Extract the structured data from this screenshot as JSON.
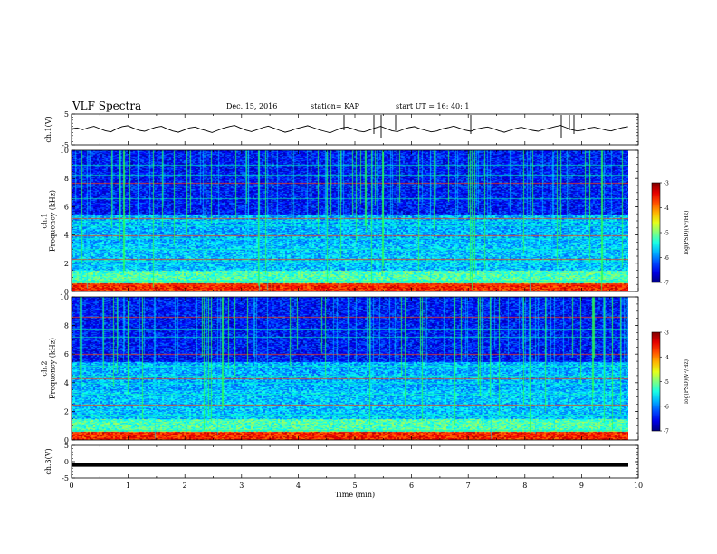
{
  "header": {
    "title": "VLF Spectra",
    "date": "Dec. 15, 2016",
    "station": "station= KAP",
    "start": "start  UT  =   16: 40: 1"
  },
  "chart_data": [
    {
      "type": "line",
      "panel": "ch1-waveform",
      "ylabel": "ch.1(V)",
      "ylim": [
        -5,
        5
      ],
      "yticks": [
        "5",
        "-5"
      ],
      "xlim": [
        0,
        10
      ],
      "series": [
        {
          "values": [
            0.2,
            0.5,
            -0.1,
            0.6,
            1.0,
            0.3,
            -0.4,
            -0.8,
            0.2,
            0.9,
            1.2,
            0.4,
            -0.3,
            -0.6,
            0.1,
            0.7,
            1.0,
            0.2,
            -0.5,
            -0.9,
            -0.2,
            0.5,
            0.8,
            0.1,
            -0.4,
            -1.0,
            -0.3,
            0.4,
            0.9,
            1.3,
            0.5,
            -0.2,
            -0.7,
            -0.1,
            0.6,
            1.1,
            0.4,
            -0.3,
            -0.9,
            -0.4,
            0.3,
            0.7,
            1.2,
            0.6,
            -0.1,
            -0.6,
            -1.1,
            -0.3,
            0.4,
            0.8,
            0.2,
            -0.5,
            -0.8,
            -0.2,
            0.5,
            1.0,
            0.3,
            -0.4,
            -0.7,
            0.0,
            0.6,
            0.9,
            0.2,
            -0.3,
            -0.8,
            -0.5,
            0.2,
            0.6,
            1.1,
            0.4,
            -0.2,
            -0.6,
            0.1,
            0.5,
            0.8,
            0.3,
            -0.4,
            -0.9,
            -0.3,
            0.3,
            0.7,
            0.2,
            -0.3,
            -0.6,
            0.0,
            0.4,
            0.9,
            1.3,
            0.6,
            -0.1,
            -0.5,
            -0.2,
            0.4,
            0.7,
            0.3,
            -0.2,
            -0.5,
            0.1,
            0.6,
            0.9
          ]
        }
      ]
    },
    {
      "type": "heatmap",
      "panel": "ch1-spectrogram",
      "ylabel": "ch.1\nFrequency  (kHz)",
      "ylim": [
        0,
        10
      ],
      "yticks": [
        "0",
        "2",
        "4",
        "6",
        "8",
        "10"
      ],
      "colorbar": {
        "label": "log(PSD)(V²/Hz)",
        "range": [
          -7,
          -3
        ],
        "ticks": [
          "-3",
          "-4",
          "-5",
          "-6",
          "-7"
        ]
      }
    },
    {
      "type": "heatmap",
      "panel": "ch2-spectrogram",
      "ylabel": "ch.2\nFrequency  (kHz)",
      "ylim": [
        0,
        10
      ],
      "yticks": [
        "0",
        "2",
        "4",
        "6",
        "8",
        "10"
      ],
      "colorbar": {
        "label": "log(PSD)(V²/Hz)",
        "range": [
          -7,
          -3
        ],
        "ticks": [
          "-3",
          "-4",
          "-5",
          "-6",
          "-7"
        ]
      }
    },
    {
      "type": "line",
      "panel": "ch3-waveform",
      "ylabel": "ch.3(V)",
      "ylim": [
        -5,
        5
      ],
      "yticks": [
        "5",
        "0",
        "-5"
      ],
      "xlim": [
        0,
        10
      ],
      "series": [
        {
          "values": [
            -1,
            -1
          ]
        }
      ]
    }
  ],
  "xaxis": {
    "label": "Time  (min)",
    "ticks": [
      "0",
      "1",
      "2",
      "3",
      "4",
      "5",
      "6",
      "7",
      "8",
      "9",
      "10"
    ],
    "range": [
      0,
      10
    ],
    "data_end": 9.82
  }
}
